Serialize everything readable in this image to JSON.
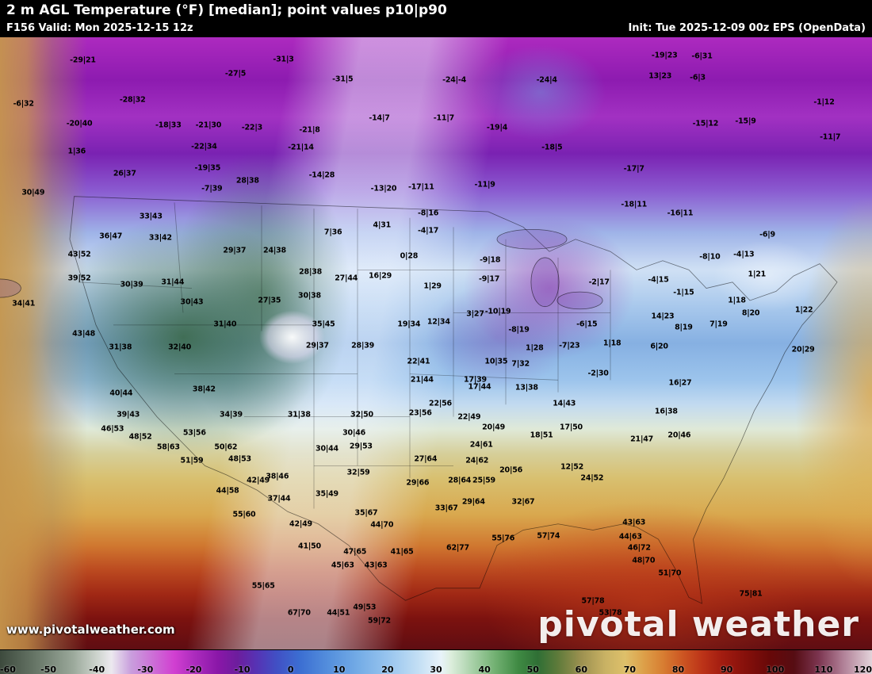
{
  "header": {
    "title": "2 m AGL Temperature (°F) [median]; point values p10|p90",
    "valid": "F156 Valid: Mon 2025-12-15 12z",
    "init": "Init: Tue 2025-12-09 00z EPS (OpenData)"
  },
  "map": {
    "watermark": "www.pivotalweather.com",
    "logo_text": "pivotal weather",
    "points": [
      {
        "x": 9.5,
        "y": 3.8,
        "l": "-29|21"
      },
      {
        "x": 27.0,
        "y": 6.0,
        "l": "-27|5"
      },
      {
        "x": 32.5,
        "y": 3.6,
        "l": "-31|3"
      },
      {
        "x": 39.3,
        "y": 6.9,
        "l": "-31|5"
      },
      {
        "x": 52.1,
        "y": 7.0,
        "l": "-24|-4"
      },
      {
        "x": 62.7,
        "y": 7.0,
        "l": "-24|4"
      },
      {
        "x": 76.2,
        "y": 3.0,
        "l": "-19|23"
      },
      {
        "x": 80.5,
        "y": 3.1,
        "l": "-6|31"
      },
      {
        "x": 2.7,
        "y": 10.9,
        "l": "-6|32"
      },
      {
        "x": 15.2,
        "y": 10.2,
        "l": "-28|32"
      },
      {
        "x": 9.1,
        "y": 14.1,
        "l": "-20|40"
      },
      {
        "x": 19.3,
        "y": 14.4,
        "l": "-18|33"
      },
      {
        "x": 23.9,
        "y": 14.4,
        "l": "-21|30"
      },
      {
        "x": 28.9,
        "y": 14.8,
        "l": "-22|3"
      },
      {
        "x": 35.5,
        "y": 15.2,
        "l": "-21|8"
      },
      {
        "x": 43.5,
        "y": 13.2,
        "l": "-14|7"
      },
      {
        "x": 50.9,
        "y": 13.2,
        "l": "-11|7"
      },
      {
        "x": 57.0,
        "y": 14.8,
        "l": "-19|4"
      },
      {
        "x": 80.9,
        "y": 14.1,
        "l": "-15|12"
      },
      {
        "x": 85.5,
        "y": 13.7,
        "l": "-15|9"
      },
      {
        "x": 95.2,
        "y": 16.3,
        "l": "-11|7"
      },
      {
        "x": 23.4,
        "y": 17.9,
        "l": "-22|34"
      },
      {
        "x": 34.5,
        "y": 18.0,
        "l": "-21|14"
      },
      {
        "x": 63.3,
        "y": 18.0,
        "l": "-18|5"
      },
      {
        "x": 8.8,
        "y": 18.7,
        "l": "1|36"
      },
      {
        "x": 14.3,
        "y": 22.3,
        "l": "26|37"
      },
      {
        "x": 23.8,
        "y": 21.4,
        "l": "-19|35"
      },
      {
        "x": 36.9,
        "y": 22.5,
        "l": "-14|28"
      },
      {
        "x": 72.7,
        "y": 21.5,
        "l": "-17|7"
      },
      {
        "x": 3.8,
        "y": 25.4,
        "l": "30|49"
      },
      {
        "x": 24.3,
        "y": 24.7,
        "l": "-7|39"
      },
      {
        "x": 28.4,
        "y": 23.4,
        "l": "28|38"
      },
      {
        "x": 44.0,
        "y": 24.7,
        "l": "-13|20"
      },
      {
        "x": 48.3,
        "y": 24.5,
        "l": "-17|11"
      },
      {
        "x": 55.6,
        "y": 24.1,
        "l": "-11|9"
      },
      {
        "x": 72.7,
        "y": 27.3,
        "l": "-18|11"
      },
      {
        "x": 78.0,
        "y": 28.8,
        "l": "-16|11"
      },
      {
        "x": 17.3,
        "y": 29.3,
        "l": "33|43"
      },
      {
        "x": 9.1,
        "y": 35.5,
        "l": "43|52"
      },
      {
        "x": 12.7,
        "y": 32.5,
        "l": "36|47"
      },
      {
        "x": 18.4,
        "y": 32.8,
        "l": "33|42"
      },
      {
        "x": 38.2,
        "y": 31.9,
        "l": "7|36"
      },
      {
        "x": 43.8,
        "y": 30.7,
        "l": "4|31"
      },
      {
        "x": 49.1,
        "y": 28.8,
        "l": "-8|16"
      },
      {
        "x": 49.1,
        "y": 31.6,
        "l": "-4|17"
      },
      {
        "x": 88.0,
        "y": 32.3,
        "l": "-6|9"
      },
      {
        "x": 81.4,
        "y": 35.9,
        "l": "-8|10"
      },
      {
        "x": 85.3,
        "y": 35.5,
        "l": "-4|13"
      },
      {
        "x": 26.9,
        "y": 34.8,
        "l": "29|37"
      },
      {
        "x": 31.5,
        "y": 34.8,
        "l": "24|38"
      },
      {
        "x": 46.9,
        "y": 35.8,
        "l": "0|28"
      },
      {
        "x": 56.2,
        "y": 36.4,
        "l": "-9|18"
      },
      {
        "x": 56.1,
        "y": 39.5,
        "l": "-9|17"
      },
      {
        "x": 9.1,
        "y": 39.4,
        "l": "39|52"
      },
      {
        "x": 15.1,
        "y": 40.4,
        "l": "30|39"
      },
      {
        "x": 19.8,
        "y": 40.0,
        "l": "31|44"
      },
      {
        "x": 35.6,
        "y": 38.3,
        "l": "28|38"
      },
      {
        "x": 39.7,
        "y": 39.4,
        "l": "27|44"
      },
      {
        "x": 43.6,
        "y": 39.0,
        "l": "16|29"
      },
      {
        "x": 49.6,
        "y": 40.7,
        "l": "1|29"
      },
      {
        "x": 57.1,
        "y": 44.8,
        "l": "-10|19"
      },
      {
        "x": 68.7,
        "y": 40.0,
        "l": "-2|17"
      },
      {
        "x": 75.5,
        "y": 39.6,
        "l": "-4|15"
      },
      {
        "x": 84.5,
        "y": 43.0,
        "l": "1|18"
      },
      {
        "x": 92.2,
        "y": 44.6,
        "l": "1|22"
      },
      {
        "x": 2.7,
        "y": 43.5,
        "l": "34|41"
      },
      {
        "x": 22.0,
        "y": 43.3,
        "l": "30|43"
      },
      {
        "x": 30.9,
        "y": 43.0,
        "l": "27|35"
      },
      {
        "x": 35.5,
        "y": 42.2,
        "l": "30|38"
      },
      {
        "x": 25.8,
        "y": 46.9,
        "l": "31|40"
      },
      {
        "x": 37.1,
        "y": 46.9,
        "l": "35|45"
      },
      {
        "x": 46.9,
        "y": 46.9,
        "l": "19|34"
      },
      {
        "x": 50.3,
        "y": 46.5,
        "l": "12|34"
      },
      {
        "x": 54.5,
        "y": 45.2,
        "l": "3|27"
      },
      {
        "x": 59.5,
        "y": 47.8,
        "l": "-8|19"
      },
      {
        "x": 67.3,
        "y": 46.9,
        "l": "-6|15"
      },
      {
        "x": 65.3,
        "y": 50.4,
        "l": "-7|23"
      },
      {
        "x": 70.2,
        "y": 50.0,
        "l": "1|18"
      },
      {
        "x": 78.4,
        "y": 47.4,
        "l": "8|19"
      },
      {
        "x": 82.4,
        "y": 46.9,
        "l": "7|19"
      },
      {
        "x": 86.1,
        "y": 45.1,
        "l": "8|20"
      },
      {
        "x": 92.1,
        "y": 51.0,
        "l": "20|29"
      },
      {
        "x": 9.6,
        "y": 48.4,
        "l": "43|48"
      },
      {
        "x": 13.8,
        "y": 50.6,
        "l": "31|38"
      },
      {
        "x": 20.6,
        "y": 50.6,
        "l": "32|40"
      },
      {
        "x": 36.4,
        "y": 50.4,
        "l": "29|37"
      },
      {
        "x": 41.6,
        "y": 50.4,
        "l": "28|39"
      },
      {
        "x": 48.0,
        "y": 53.0,
        "l": "22|41"
      },
      {
        "x": 56.9,
        "y": 53.0,
        "l": "10|35"
      },
      {
        "x": 54.5,
        "y": 56.0,
        "l": "17|39"
      },
      {
        "x": 59.7,
        "y": 53.4,
        "l": "7|32"
      },
      {
        "x": 61.3,
        "y": 50.8,
        "l": "1|28"
      },
      {
        "x": 68.6,
        "y": 54.9,
        "l": "-2|30"
      },
      {
        "x": 78.0,
        "y": 56.5,
        "l": "16|27"
      },
      {
        "x": 76.4,
        "y": 61.1,
        "l": "16|38"
      },
      {
        "x": 48.4,
        "y": 56.0,
        "l": "21|44"
      },
      {
        "x": 55.0,
        "y": 57.1,
        "l": "17|44"
      },
      {
        "x": 60.4,
        "y": 57.3,
        "l": "13|38"
      },
      {
        "x": 13.9,
        "y": 58.2,
        "l": "40|44"
      },
      {
        "x": 23.4,
        "y": 57.5,
        "l": "38|42"
      },
      {
        "x": 50.5,
        "y": 59.8,
        "l": "22|56"
      },
      {
        "x": 64.7,
        "y": 59.8,
        "l": "14|43"
      },
      {
        "x": 14.7,
        "y": 61.7,
        "l": "39|43"
      },
      {
        "x": 26.5,
        "y": 61.7,
        "l": "34|39"
      },
      {
        "x": 34.3,
        "y": 61.7,
        "l": "31|38"
      },
      {
        "x": 48.2,
        "y": 61.4,
        "l": "23|56"
      },
      {
        "x": 53.8,
        "y": 62.0,
        "l": "22|49"
      },
      {
        "x": 56.6,
        "y": 63.7,
        "l": "20|49"
      },
      {
        "x": 62.1,
        "y": 65.0,
        "l": "18|51"
      },
      {
        "x": 65.5,
        "y": 63.7,
        "l": "17|50"
      },
      {
        "x": 12.9,
        "y": 64.0,
        "l": "46|53"
      },
      {
        "x": 16.1,
        "y": 65.3,
        "l": "48|52"
      },
      {
        "x": 22.3,
        "y": 64.6,
        "l": "53|56"
      },
      {
        "x": 19.3,
        "y": 67.0,
        "l": "58|63"
      },
      {
        "x": 25.9,
        "y": 67.0,
        "l": "50|62"
      },
      {
        "x": 27.5,
        "y": 68.9,
        "l": "48|53"
      },
      {
        "x": 22.0,
        "y": 69.2,
        "l": "51|59"
      },
      {
        "x": 41.5,
        "y": 61.7,
        "l": "32|50"
      },
      {
        "x": 40.6,
        "y": 64.6,
        "l": "30|46"
      },
      {
        "x": 41.4,
        "y": 66.8,
        "l": "29|53"
      },
      {
        "x": 37.5,
        "y": 67.2,
        "l": "30|44"
      },
      {
        "x": 48.8,
        "y": 68.9,
        "l": "27|64"
      },
      {
        "x": 54.7,
        "y": 69.2,
        "l": "24|62"
      },
      {
        "x": 73.6,
        "y": 65.7,
        "l": "21|47"
      },
      {
        "x": 77.9,
        "y": 65.0,
        "l": "20|46"
      },
      {
        "x": 65.6,
        "y": 70.2,
        "l": "12|52"
      },
      {
        "x": 67.9,
        "y": 72.0,
        "l": "24|52"
      },
      {
        "x": 29.6,
        "y": 72.4,
        "l": "42|49"
      },
      {
        "x": 31.8,
        "y": 71.8,
        "l": "38|46"
      },
      {
        "x": 41.1,
        "y": 71.1,
        "l": "32|59"
      },
      {
        "x": 52.7,
        "y": 72.4,
        "l": "28|64"
      },
      {
        "x": 55.5,
        "y": 72.4,
        "l": "25|59"
      },
      {
        "x": 47.9,
        "y": 72.8,
        "l": "29|66"
      },
      {
        "x": 26.1,
        "y": 74.1,
        "l": "44|58"
      },
      {
        "x": 37.5,
        "y": 74.6,
        "l": "35|49"
      },
      {
        "x": 32.0,
        "y": 75.4,
        "l": "37|44"
      },
      {
        "x": 54.3,
        "y": 75.9,
        "l": "29|64"
      },
      {
        "x": 51.2,
        "y": 76.9,
        "l": "33|67"
      },
      {
        "x": 60.0,
        "y": 75.9,
        "l": "32|67"
      },
      {
        "x": 42.0,
        "y": 77.7,
        "l": "35|67"
      },
      {
        "x": 28.0,
        "y": 78.0,
        "l": "55|60"
      },
      {
        "x": 34.5,
        "y": 79.5,
        "l": "42|49"
      },
      {
        "x": 43.8,
        "y": 79.7,
        "l": "44|70"
      },
      {
        "x": 30.2,
        "y": 89.6,
        "l": "55|65"
      },
      {
        "x": 35.5,
        "y": 83.2,
        "l": "41|50"
      },
      {
        "x": 40.7,
        "y": 84.1,
        "l": "47|65"
      },
      {
        "x": 46.1,
        "y": 84.1,
        "l": "41|65"
      },
      {
        "x": 39.3,
        "y": 86.3,
        "l": "45|63"
      },
      {
        "x": 43.1,
        "y": 86.3,
        "l": "43|63"
      },
      {
        "x": 72.7,
        "y": 79.3,
        "l": "43|63"
      },
      {
        "x": 72.3,
        "y": 81.6,
        "l": "44|63"
      },
      {
        "x": 73.3,
        "y": 83.4,
        "l": "46|72"
      },
      {
        "x": 73.8,
        "y": 85.5,
        "l": "48|70"
      },
      {
        "x": 76.8,
        "y": 87.6,
        "l": "51|70"
      },
      {
        "x": 57.7,
        "y": 81.9,
        "l": "55|76"
      },
      {
        "x": 62.9,
        "y": 81.5,
        "l": "57|74"
      },
      {
        "x": 52.5,
        "y": 83.4,
        "l": "62|77"
      },
      {
        "x": 68.0,
        "y": 92.1,
        "l": "57|78"
      },
      {
        "x": 70.0,
        "y": 94.0,
        "l": "53|78"
      },
      {
        "x": 86.1,
        "y": 90.9,
        "l": "75|81"
      },
      {
        "x": 41.8,
        "y": 93.1,
        "l": "49|53"
      },
      {
        "x": 38.8,
        "y": 94.0,
        "l": "44|51"
      },
      {
        "x": 43.5,
        "y": 95.3,
        "l": "59|72"
      },
      {
        "x": 34.3,
        "y": 94.0,
        "l": "67|70"
      },
      {
        "x": 55.2,
        "y": 66.6,
        "l": "24|61"
      },
      {
        "x": 58.6,
        "y": 70.7,
        "l": "20|56"
      },
      {
        "x": 76.0,
        "y": 45.6,
        "l": "14|23"
      },
      {
        "x": 75.6,
        "y": 50.5,
        "l": "6|20"
      },
      {
        "x": 78.4,
        "y": 41.7,
        "l": "-1|15"
      },
      {
        "x": 94.5,
        "y": 10.6,
        "l": "-1|12"
      },
      {
        "x": 75.7,
        "y": 6.3,
        "l": "13|23"
      },
      {
        "x": 80.0,
        "y": 6.6,
        "l": "-6|3"
      },
      {
        "x": 86.8,
        "y": 38.7,
        "l": "1|21"
      }
    ]
  },
  "colorbar": {
    "ticks": [
      -60,
      -50,
      -40,
      -30,
      -20,
      -10,
      0,
      10,
      20,
      30,
      40,
      50,
      60,
      70,
      80,
      90,
      100,
      110,
      120
    ],
    "stops": [
      {
        "value": -60,
        "color": "#3d4a3d"
      },
      {
        "value": -52,
        "color": "#6b7a6b"
      },
      {
        "value": -45,
        "color": "#9aa89a"
      },
      {
        "value": -40,
        "color": "#cdd4cd"
      },
      {
        "value": -37,
        "color": "#ece9ef"
      },
      {
        "value": -33,
        "color": "#c99fdd"
      },
      {
        "value": -28,
        "color": "#cd6ad6"
      },
      {
        "value": -24,
        "color": "#d13fd1"
      },
      {
        "value": -20,
        "color": "#ad2cbe"
      },
      {
        "value": -15,
        "color": "#8a17a8"
      },
      {
        "value": -11,
        "color": "#6d1d9d"
      },
      {
        "value": -7,
        "color": "#5633b4"
      },
      {
        "value": -3,
        "color": "#414fc4"
      },
      {
        "value": 2,
        "color": "#3c6fd2"
      },
      {
        "value": 8,
        "color": "#5590dd"
      },
      {
        "value": 14,
        "color": "#74ace6"
      },
      {
        "value": 20,
        "color": "#97c4ee"
      },
      {
        "value": 26,
        "color": "#c0ddf4"
      },
      {
        "value": 31,
        "color": "#e8f3fa"
      },
      {
        "value": 33,
        "color": "#ddeedd"
      },
      {
        "value": 37,
        "color": "#aed4ae"
      },
      {
        "value": 42,
        "color": "#74b274"
      },
      {
        "value": 47,
        "color": "#3f8a43"
      },
      {
        "value": 51,
        "color": "#2f6f35"
      },
      {
        "value": 55,
        "color": "#5d7a3a"
      },
      {
        "value": 60,
        "color": "#9d9150"
      },
      {
        "value": 65,
        "color": "#c9b264"
      },
      {
        "value": 69,
        "color": "#dec06a"
      },
      {
        "value": 73,
        "color": "#dd9f48"
      },
      {
        "value": 77,
        "color": "#d77c31"
      },
      {
        "value": 81,
        "color": "#cc5522"
      },
      {
        "value": 85,
        "color": "#bc3318"
      },
      {
        "value": 89,
        "color": "#a31c10"
      },
      {
        "value": 94,
        "color": "#85100b"
      },
      {
        "value": 99,
        "color": "#670808"
      },
      {
        "value": 104,
        "color": "#560d13"
      },
      {
        "value": 109,
        "color": "#7c3550"
      },
      {
        "value": 114,
        "color": "#b07f96"
      },
      {
        "value": 120,
        "color": "#e3d3da"
      }
    ],
    "range": [
      -60,
      120
    ]
  }
}
